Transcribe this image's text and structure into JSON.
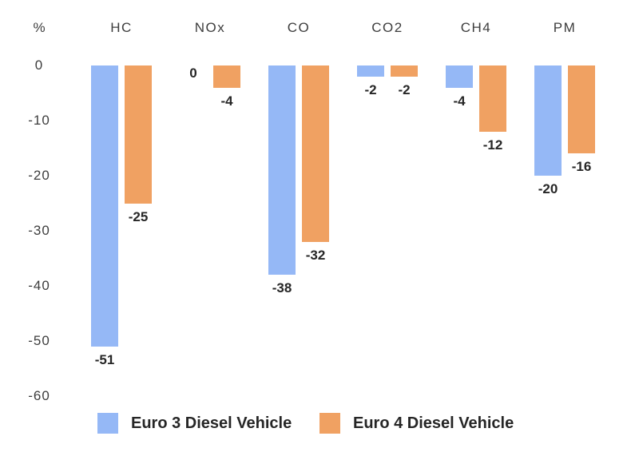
{
  "chart_data": {
    "type": "bar",
    "title": "",
    "ylabel": "%",
    "categories": [
      "HC",
      "NOx",
      "CO",
      "CO2",
      "CH4",
      "PM"
    ],
    "series": [
      {
        "name": "Euro 3 Diesel Vehicle",
        "color": "#95b8f6",
        "values": [
          -51,
          0,
          -38,
          -2,
          -4,
          -20
        ]
      },
      {
        "name": "Euro 4 Diesel Vehicle",
        "color": "#f0a162",
        "values": [
          -25,
          -4,
          -32,
          -2,
          -12,
          -16
        ]
      }
    ],
    "y_ticks": [
      0,
      -10,
      -20,
      -30,
      -40,
      -50,
      -60
    ],
    "ylim": [
      -60,
      0
    ],
    "grid": false,
    "axis_lines": false,
    "legend_position": "bottom",
    "value_labels": true,
    "colors": {
      "background": "#ffffff",
      "axis_text": "#3d3d3d",
      "value_text": "#262626"
    }
  }
}
